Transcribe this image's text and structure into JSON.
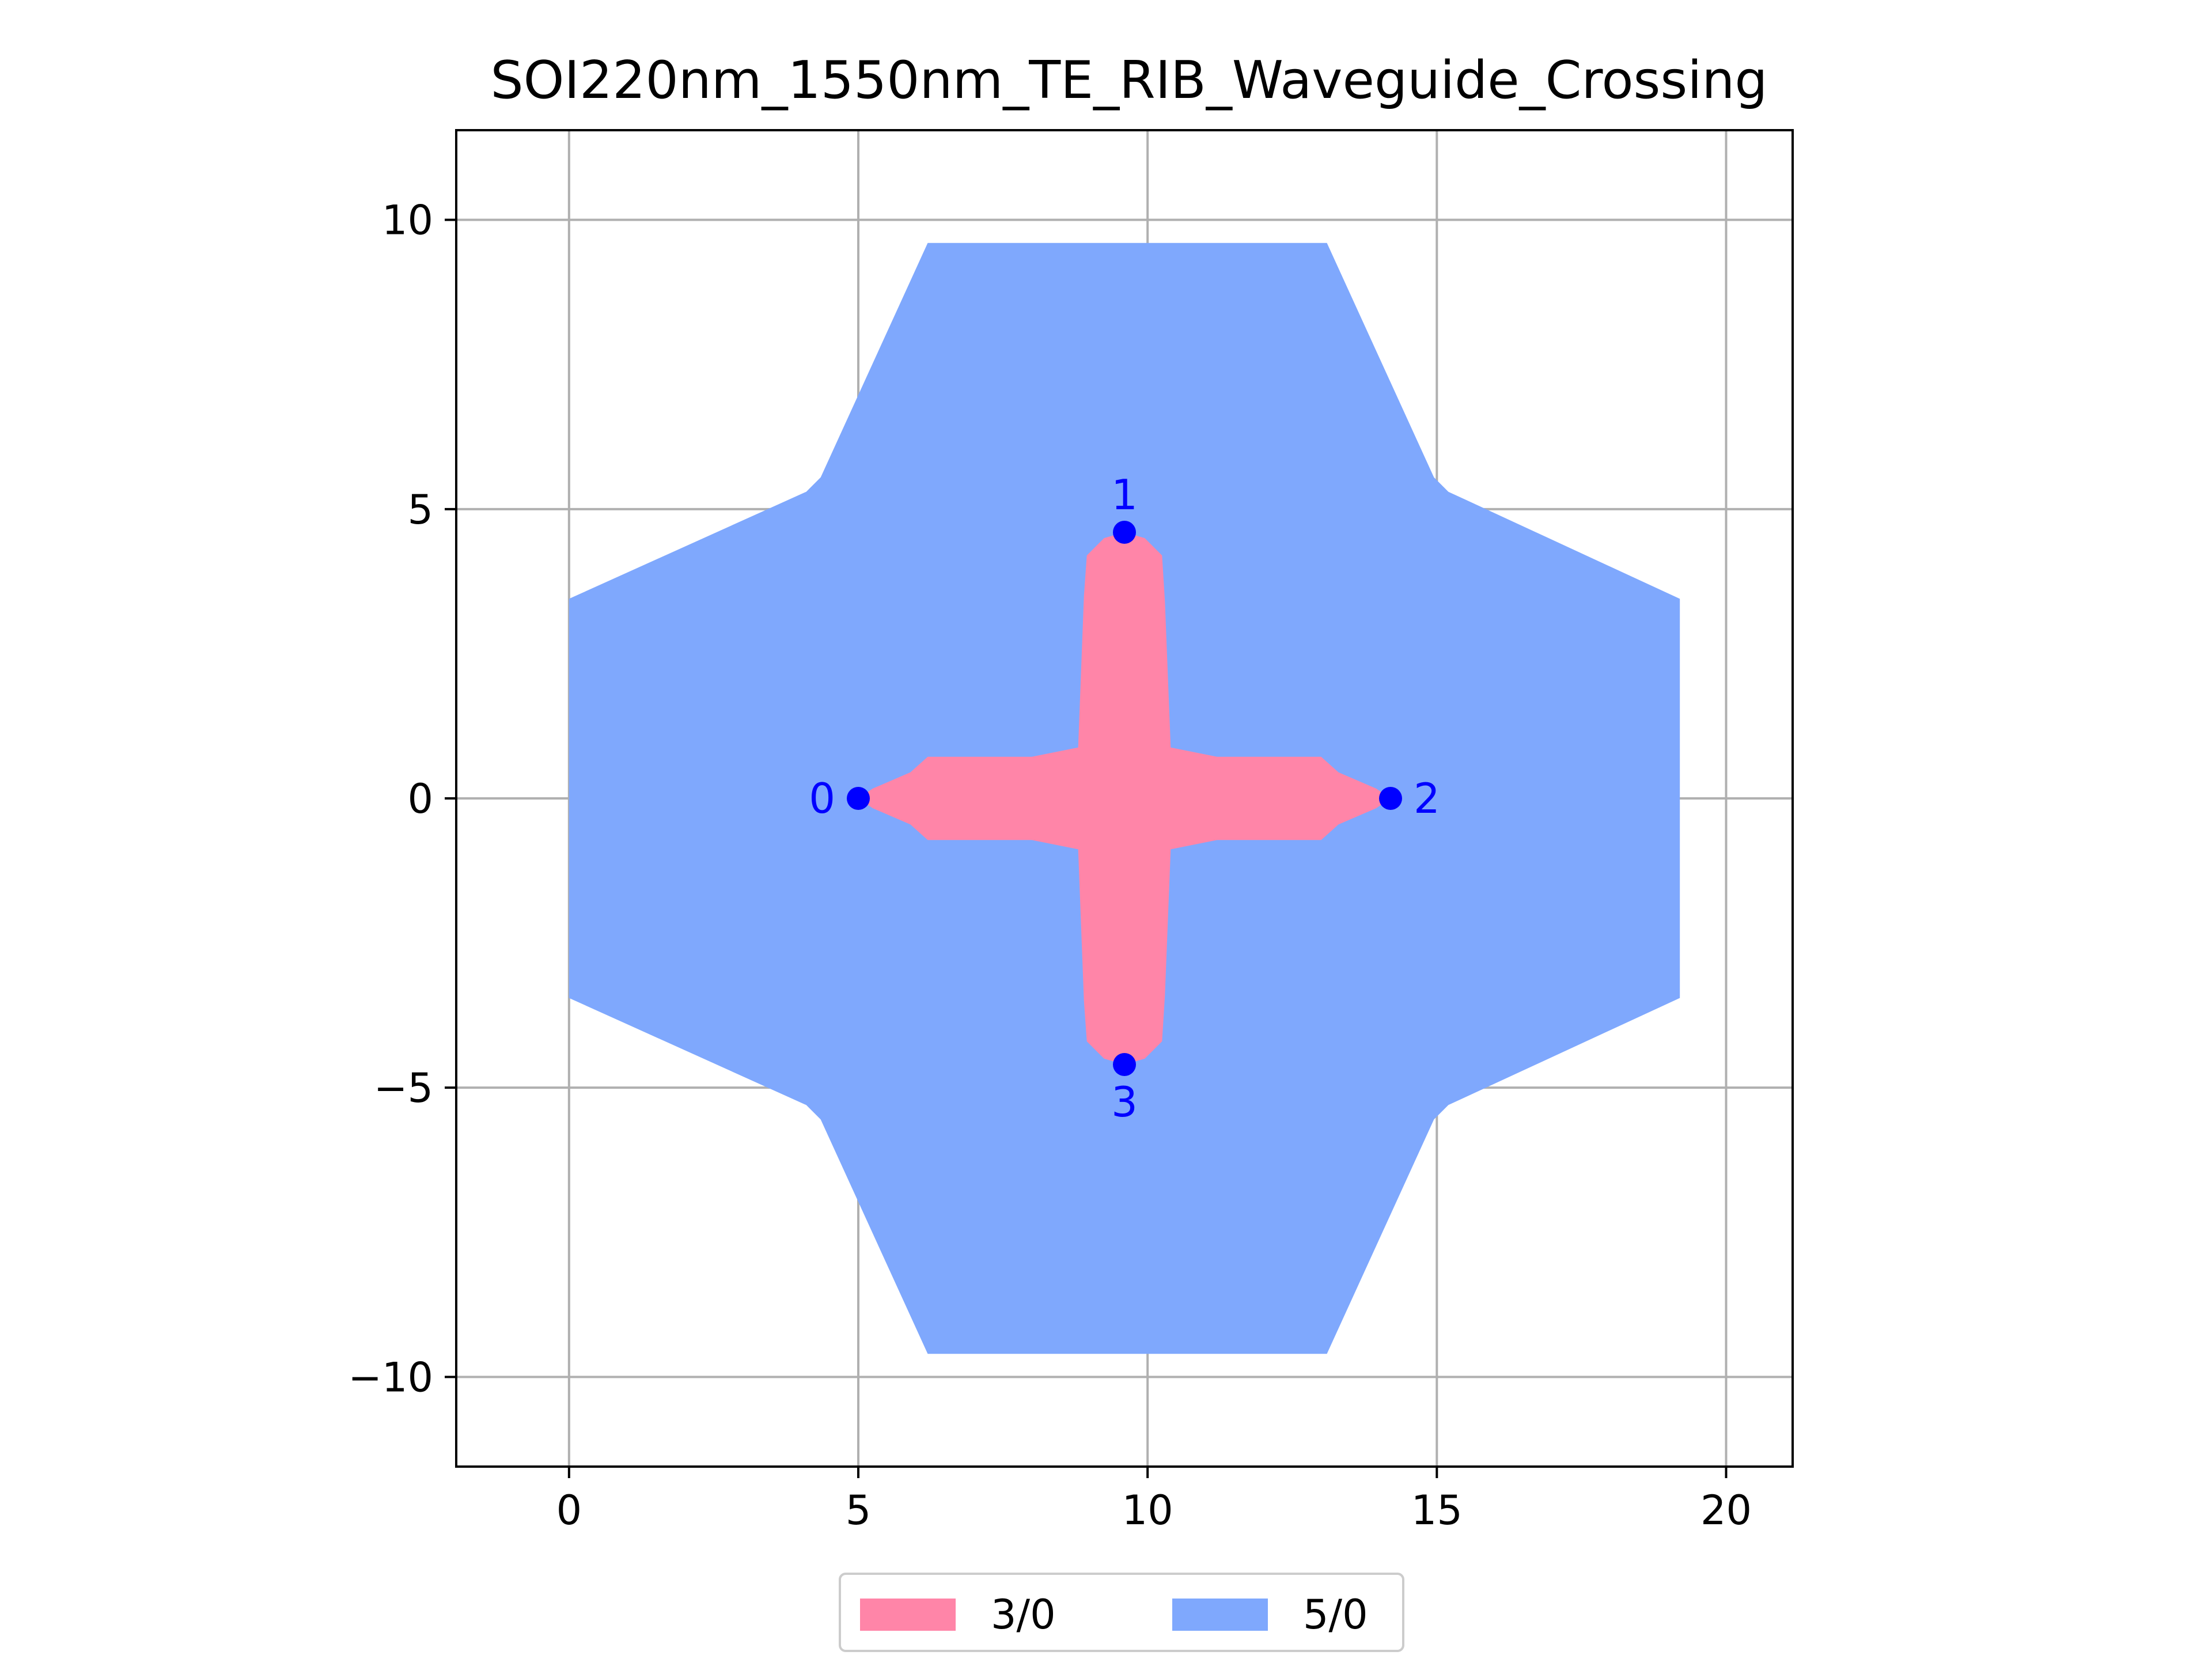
{
  "chart_data": {
    "type": "polygon-layout",
    "title": "SOI220nm_1550nm_TE_RIB_Waveguide_Crossing",
    "xlabel": "",
    "ylabel": "",
    "xlim": [
      -1.95,
      21.15
    ],
    "ylim": [
      -11.55,
      11.55
    ],
    "x_ticks": [
      0,
      5,
      10,
      15,
      20
    ],
    "y_ticks": [
      10,
      5,
      0,
      -5,
      -10
    ],
    "x_tick_labels": [
      "0",
      "5",
      "10",
      "15",
      "20"
    ],
    "y_tick_labels": [
      "10",
      "5",
      "0",
      "−5",
      "−10"
    ],
    "grid": true,
    "legend_position": "bottom-center",
    "series": [
      {
        "name": "3/0",
        "color": "#ff85a8",
        "points": [
          [
            5.0,
            0.0
          ],
          [
            5.25,
            0.17
          ],
          [
            5.9,
            0.45
          ],
          [
            6.2,
            0.72
          ],
          [
            8.0,
            0.72
          ],
          [
            8.8,
            0.88
          ],
          [
            8.9,
            3.5
          ],
          [
            8.95,
            4.2
          ],
          [
            9.25,
            4.5
          ],
          [
            9.6,
            4.6
          ],
          [
            9.95,
            4.5
          ],
          [
            10.25,
            4.2
          ],
          [
            10.3,
            3.4
          ],
          [
            10.4,
            0.88
          ],
          [
            11.2,
            0.72
          ],
          [
            13.0,
            0.72
          ],
          [
            13.3,
            0.45
          ],
          [
            13.95,
            0.17
          ],
          [
            14.2,
            0.0
          ],
          [
            13.95,
            -0.17
          ],
          [
            13.3,
            -0.45
          ],
          [
            13.0,
            -0.72
          ],
          [
            11.2,
            -0.72
          ],
          [
            10.4,
            -0.88
          ],
          [
            10.3,
            -3.4
          ],
          [
            10.25,
            -4.2
          ],
          [
            9.95,
            -4.5
          ],
          [
            9.6,
            -4.6
          ],
          [
            9.25,
            -4.5
          ],
          [
            8.95,
            -4.2
          ],
          [
            8.9,
            -3.5
          ],
          [
            8.8,
            -0.88
          ],
          [
            8.0,
            -0.72
          ],
          [
            6.2,
            -0.72
          ],
          [
            5.9,
            -0.45
          ],
          [
            5.25,
            -0.17
          ]
        ]
      },
      {
        "name": "5/0",
        "color": "#7fa8fd",
        "points": [
          [
            0.0,
            3.45
          ],
          [
            4.1,
            5.3
          ],
          [
            4.35,
            5.55
          ],
          [
            6.2,
            9.6
          ],
          [
            13.1,
            9.6
          ],
          [
            14.95,
            5.55
          ],
          [
            15.2,
            5.3
          ],
          [
            19.2,
            3.45
          ],
          [
            19.2,
            -3.45
          ],
          [
            15.2,
            -5.3
          ],
          [
            14.95,
            -5.55
          ],
          [
            13.1,
            -9.6
          ],
          [
            6.2,
            -9.6
          ],
          [
            4.35,
            -5.55
          ],
          [
            4.1,
            -5.3
          ],
          [
            0.0,
            -3.45
          ]
        ]
      }
    ],
    "ports": [
      {
        "label": "0",
        "x": 5.0,
        "y": 0.0,
        "placement": "left"
      },
      {
        "label": "1",
        "x": 9.6,
        "y": 4.6,
        "placement": "above"
      },
      {
        "label": "2",
        "x": 14.2,
        "y": 0.0,
        "placement": "right"
      },
      {
        "label": "3",
        "x": 9.6,
        "y": -4.6,
        "placement": "below"
      }
    ],
    "port_color": "#0000ff"
  }
}
